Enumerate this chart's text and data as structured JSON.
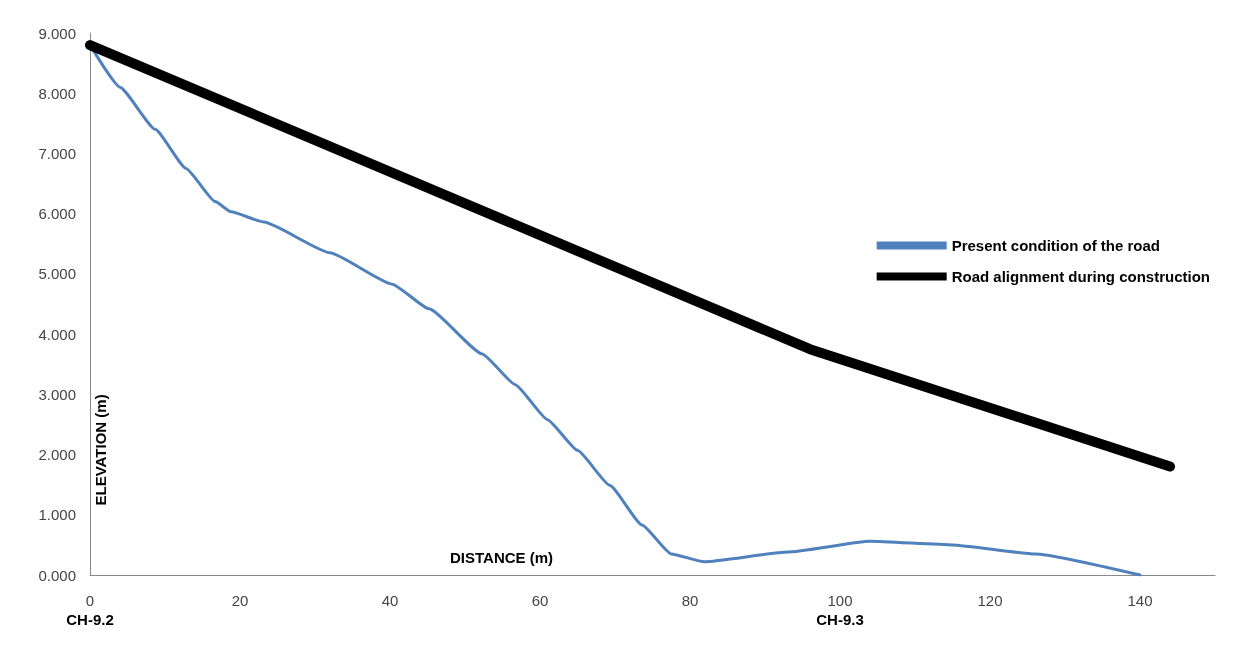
{
  "chart_data": {
    "type": "line",
    "xlabel": "DISTANCE (m)",
    "ylabel": "ELEVATION (m)",
    "xlim": [
      0,
      150
    ],
    "xticks": [
      {
        "value": 0,
        "label": "0\nCH-9.2"
      },
      20,
      40,
      60,
      80,
      {
        "value": 100,
        "label": "100\nCH-9.3"
      },
      120,
      140
    ],
    "ylim": [
      0,
      9
    ],
    "yticks": [
      {
        "value": 0,
        "label": "0.000"
      },
      {
        "value": 1,
        "label": "1.000"
      },
      {
        "value": 2,
        "label": "2.000"
      },
      {
        "value": 3,
        "label": "3.000"
      },
      {
        "value": 4,
        "label": "4.000"
      },
      {
        "value": 5,
        "label": "5.000"
      },
      {
        "value": 6,
        "label": "6.000"
      },
      {
        "value": 7,
        "label": "7.000"
      },
      {
        "value": 8,
        "label": "8.000"
      },
      {
        "value": 9,
        "label": "9.000"
      }
    ],
    "grid": false,
    "legend": "right",
    "marker": "none",
    "line_style": "solid",
    "series": [
      {
        "name": "Present condition of the road",
        "color": "#4f81bd",
        "x": [
          0,
          4,
          8.7,
          12.8,
          16.7,
          18.8,
          23.2,
          32,
          40.3,
          45.2,
          52.3,
          56.7,
          61,
          65,
          69.3,
          73.6,
          77.5,
          81.9,
          93,
          104,
          115,
          126,
          140
        ],
        "values": [
          8.8,
          8.1,
          7.4,
          6.75,
          6.2,
          6.03,
          5.86,
          5.35,
          4.83,
          4.42,
          3.67,
          3.16,
          2.58,
          2.07,
          1.49,
          0.83,
          0.35,
          0.22,
          0.38,
          0.56,
          0.5,
          0.35,
          0
        ]
      },
      {
        "name": "Road alignment during construction",
        "color": "#000000",
        "x": [
          0,
          96,
          144
        ],
        "values": [
          8.8,
          3.75,
          1.8
        ]
      }
    ]
  }
}
